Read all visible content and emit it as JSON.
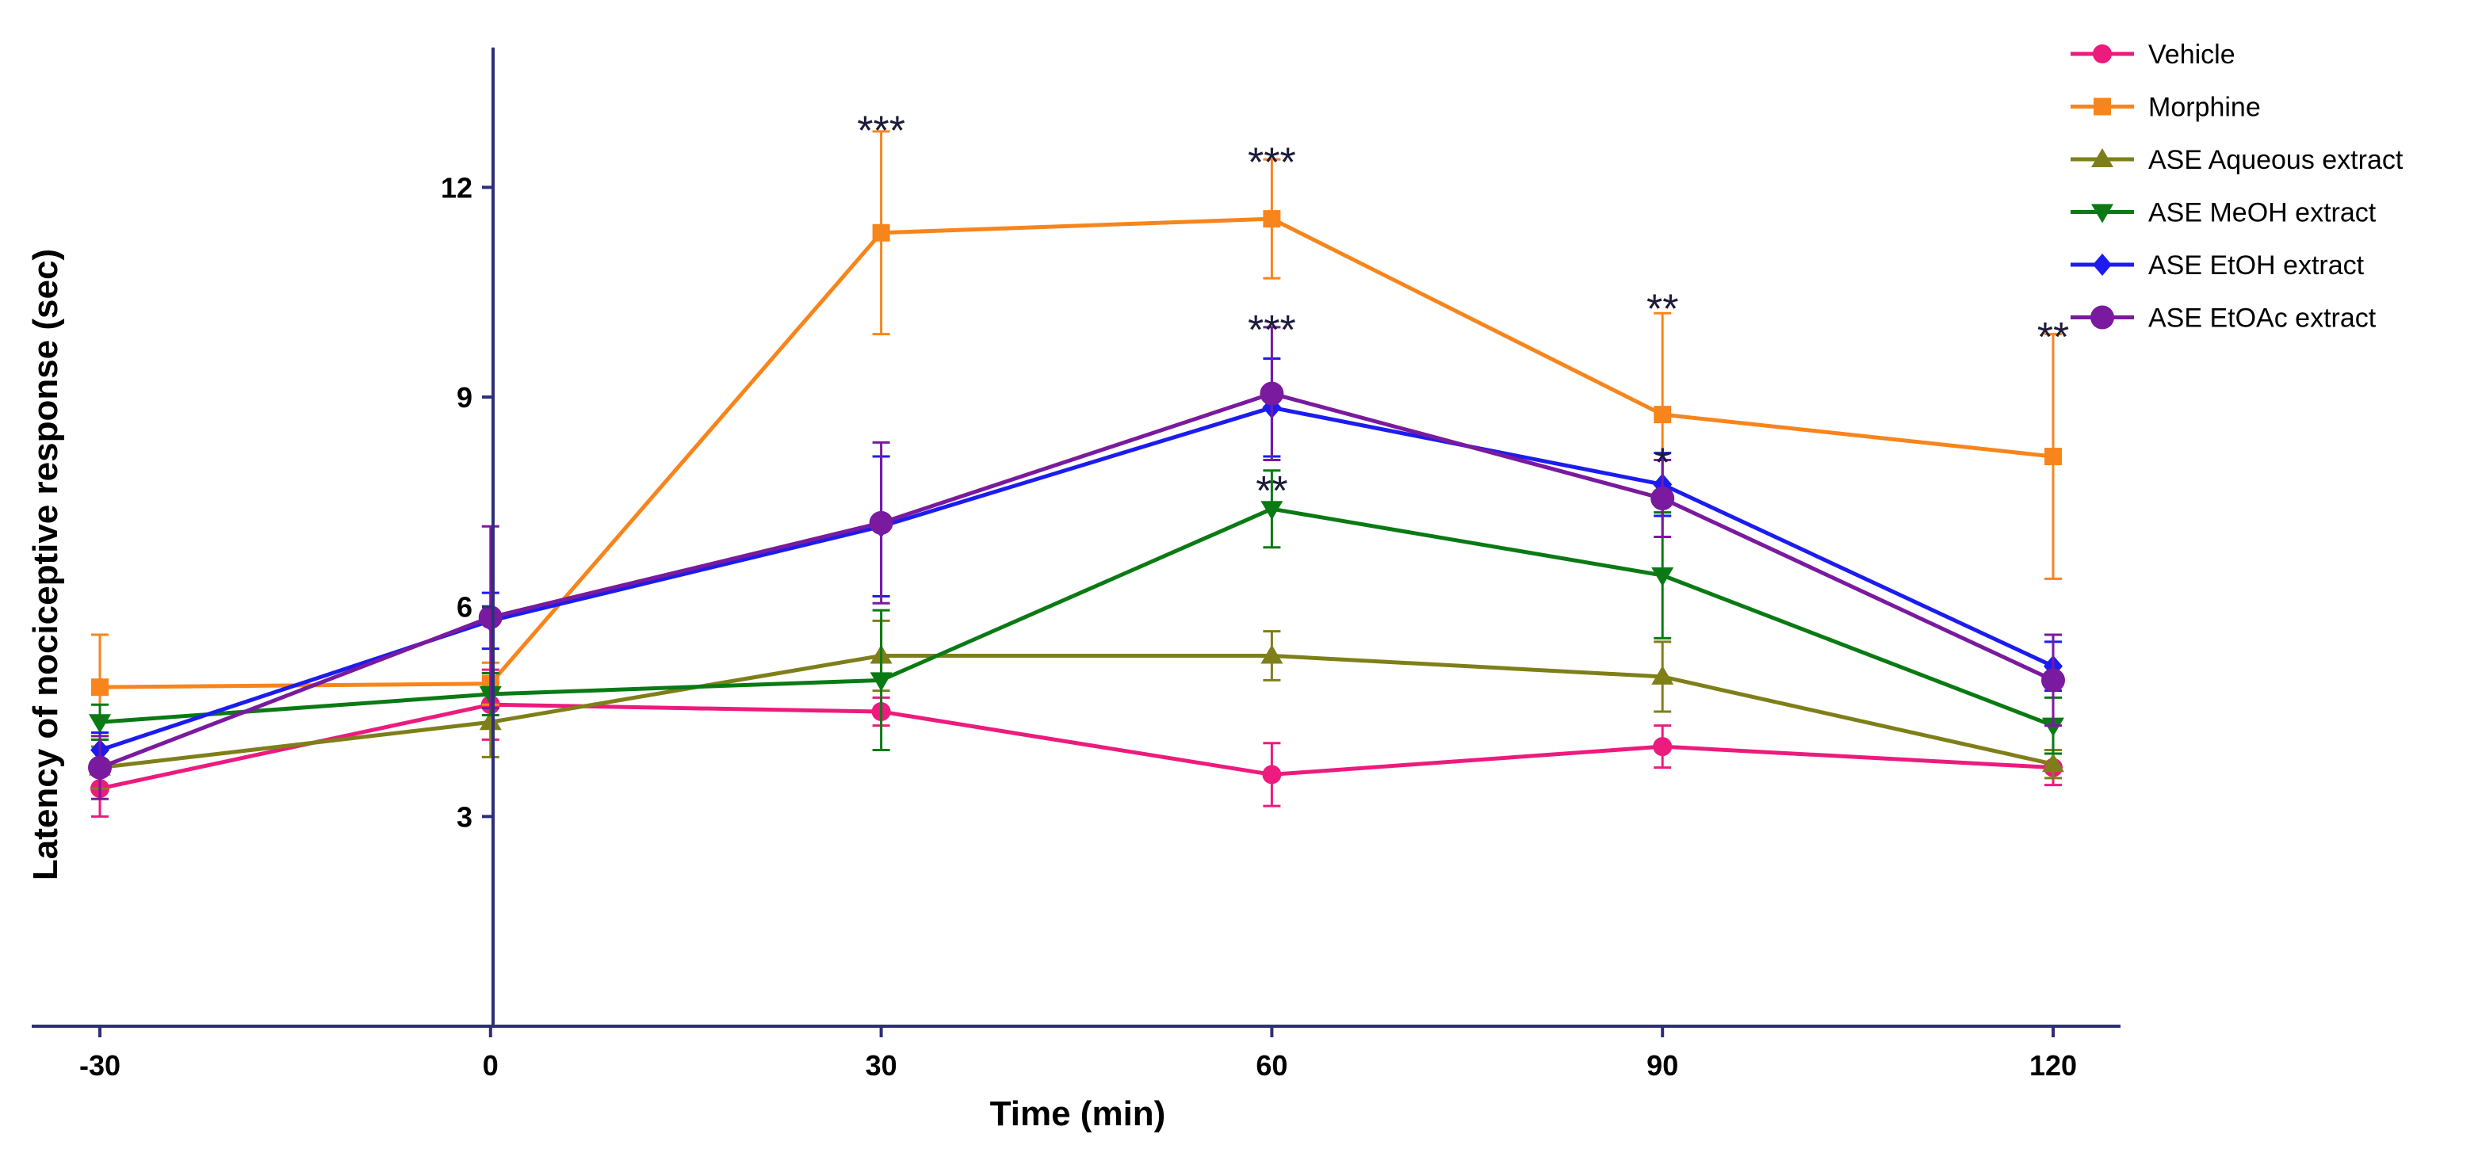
{
  "chart_data": {
    "type": "line",
    "title": "",
    "xlabel": "Time (min)",
    "ylabel": "Latency of nociceptive response (sec)",
    "x": [
      -30,
      0,
      30,
      60,
      90,
      120
    ],
    "xlim": [
      -30,
      120
    ],
    "ylim": [
      0,
      14
    ],
    "xticks": [
      "-30",
      "0",
      "30",
      "60",
      "90",
      "120"
    ],
    "yticks": [
      "3",
      "6",
      "9",
      "12"
    ],
    "legend_position": "top-right",
    "series": [
      {
        "name": "Vehicle",
        "color": "#ec1b7d",
        "marker": "circle",
        "values": [
          3.4,
          4.6,
          4.5,
          3.6,
          4.0,
          3.7
        ],
        "errors": [
          0.4,
          0.5,
          0.2,
          0.45,
          0.3,
          0.25
        ]
      },
      {
        "name": "Morphine",
        "color": "#f7851c",
        "marker": "square",
        "values": [
          4.85,
          4.9,
          11.35,
          11.55,
          8.75,
          8.15
        ],
        "errors": [
          0.75,
          0.3,
          1.45,
          0.85,
          1.45,
          1.75
        ]
      },
      {
        "name": "ASE Aqueous extract",
        "color": "#7f7f1a",
        "marker": "triangle-up",
        "values": [
          3.7,
          4.35,
          5.3,
          5.3,
          5.0,
          3.75
        ],
        "errors": [
          0.3,
          0.5,
          0.5,
          0.35,
          0.5,
          0.2
        ]
      },
      {
        "name": "ASE MeOH extract",
        "color": "#0a7a14",
        "marker": "triangle-down",
        "values": [
          4.35,
          4.75,
          4.95,
          7.4,
          6.45,
          4.3
        ],
        "errors": [
          0.25,
          0.3,
          1.0,
          0.55,
          0.9,
          0.4
        ]
      },
      {
        "name": "ASE EtOH extract",
        "color": "#1c1cf0",
        "marker": "diamond",
        "values": [
          3.95,
          5.8,
          7.15,
          8.85,
          7.75,
          5.15
        ],
        "errors": [
          0.25,
          0.4,
          1.0,
          0.7,
          0.45,
          0.35
        ]
      },
      {
        "name": "ASE EtOAc extract",
        "color": "#7a1a9e",
        "marker": "big-circle",
        "values": [
          3.7,
          5.85,
          7.2,
          9.05,
          7.55,
          4.95
        ],
        "errors": [
          0.45,
          1.3,
          1.15,
          0.95,
          0.55,
          0.65
        ]
      }
    ],
    "annotations": [
      {
        "text": "***",
        "x": 30,
        "y": 12.95
      },
      {
        "text": "***",
        "x": 60,
        "y": 12.5
      },
      {
        "text": "***",
        "x": 60,
        "y": 10.1
      },
      {
        "text": "**",
        "x": 60,
        "y": 7.8
      },
      {
        "text": "**",
        "x": 90,
        "y": 10.4
      },
      {
        "text": "*",
        "x": 90,
        "y": 8.2
      },
      {
        "text": "**",
        "x": 120,
        "y": 10.0
      }
    ]
  }
}
